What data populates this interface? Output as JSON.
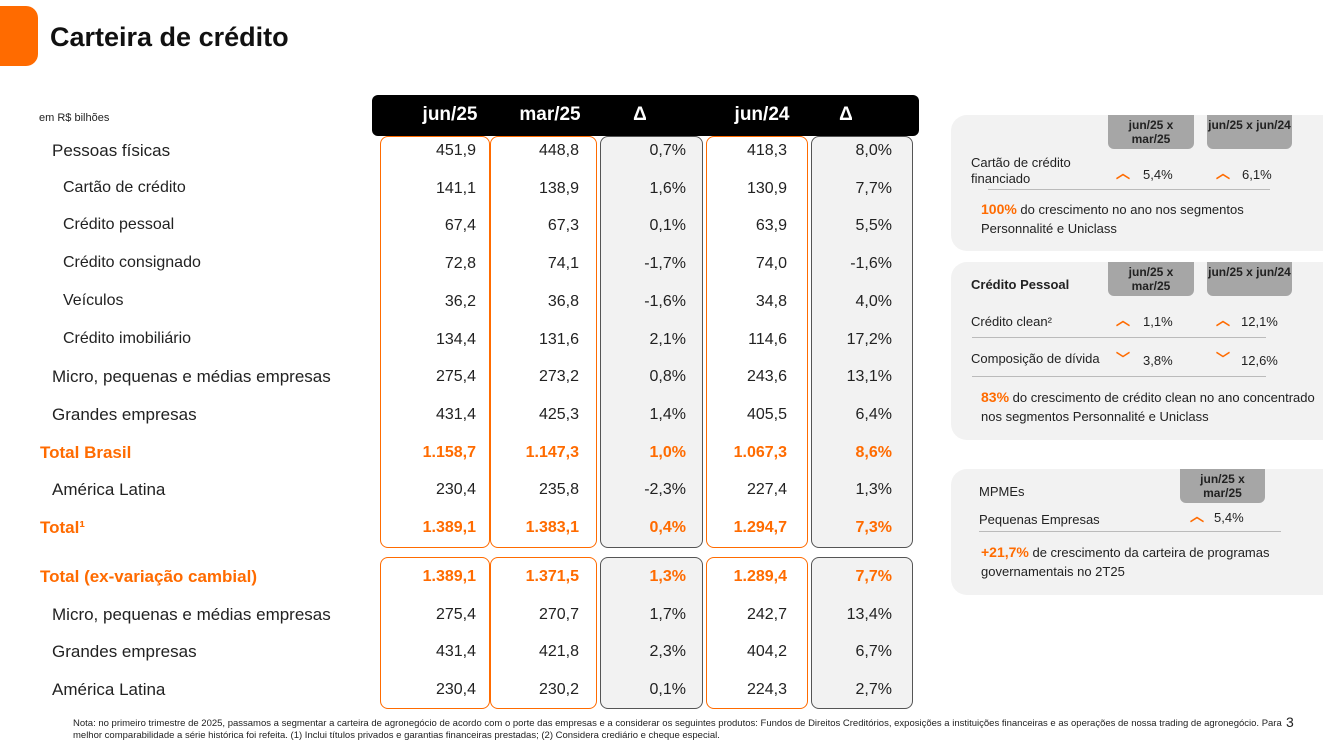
{
  "title": "Carteira de crédito",
  "unit": "em R$ bilhões",
  "columns": [
    "jun/25",
    "mar/25",
    "Δ",
    "jun/24",
    "Δ"
  ],
  "rows": [
    {
      "label": "Pessoas físicas",
      "values": [
        "451,9",
        "448,8",
        "0,7%",
        "418,3",
        "8,0%"
      ],
      "indent": 1,
      "style": "main"
    },
    {
      "label": "Cartão de crédito",
      "values": [
        "141,1",
        "138,9",
        "1,6%",
        "130,9",
        "7,7%"
      ],
      "indent": 2,
      "style": "sub"
    },
    {
      "label": "Crédito pessoal",
      "values": [
        "67,4",
        "67,3",
        "0,1%",
        "63,9",
        "5,5%"
      ],
      "indent": 2,
      "style": "sub"
    },
    {
      "label": "Crédito consignado",
      "values": [
        "72,8",
        "74,1",
        "-1,7%",
        "74,0",
        "-1,6%"
      ],
      "indent": 2,
      "style": "sub"
    },
    {
      "label": "Veículos",
      "values": [
        "36,2",
        "36,8",
        "-1,6%",
        "34,8",
        "4,0%"
      ],
      "indent": 2,
      "style": "sub"
    },
    {
      "label": "Crédito imobiliário",
      "values": [
        "134,4",
        "131,6",
        "2,1%",
        "114,6",
        "17,2%"
      ],
      "indent": 2,
      "style": "sub"
    },
    {
      "label": "Micro, pequenas e médias empresas",
      "values": [
        "275,4",
        "273,2",
        "0,8%",
        "243,6",
        "13,1%"
      ],
      "indent": 1,
      "style": "main"
    },
    {
      "label": "Grandes empresas",
      "values": [
        "431,4",
        "425,3",
        "1,4%",
        "405,5",
        "6,4%"
      ],
      "indent": 1,
      "style": "main"
    },
    {
      "label": "Total Brasil",
      "values": [
        "1.158,7",
        "1.147,3",
        "1,0%",
        "1.067,3",
        "8,6%"
      ],
      "indent": 0,
      "style": "total"
    },
    {
      "label": "América Latina",
      "values": [
        "230,4",
        "235,8",
        "-2,3%",
        "227,4",
        "1,3%"
      ],
      "indent": 1,
      "style": "main"
    },
    {
      "label": "Total¹",
      "values": [
        "1.389,1",
        "1.383,1",
        "0,4%",
        "1.294,7",
        "7,3%"
      ],
      "indent": 0,
      "style": "total"
    }
  ],
  "rows2": [
    {
      "label": "Total (ex-variação cambial)",
      "values": [
        "1.389,1",
        "1.371,5",
        "1,3%",
        "1.289,4",
        "7,7%"
      ],
      "indent": 0,
      "style": "total"
    },
    {
      "label": "Micro, pequenas e médias empresas",
      "values": [
        "275,4",
        "270,7",
        "1,7%",
        "242,7",
        "13,4%"
      ],
      "indent": 1,
      "style": "main"
    },
    {
      "label": "Grandes empresas",
      "values": [
        "431,4",
        "421,8",
        "2,3%",
        "404,2",
        "6,7%"
      ],
      "indent": 1,
      "style": "main"
    },
    {
      "label": "América Latina",
      "values": [
        "230,4",
        "230,2",
        "0,1%",
        "224,3",
        "2,7%"
      ],
      "indent": 1,
      "style": "main"
    }
  ],
  "panels": {
    "p1": {
      "pill1": "jun/25 x mar/25",
      "pill2": "jun/25 x jun/24",
      "row_label": "Cartão de crédito financiado",
      "v1": "5,4%",
      "v2": "6,1%",
      "highlight": "100%",
      "text": " do crescimento no ano nos segmentos Personnalité e Uniclass"
    },
    "p2": {
      "title": "Crédito Pessoal",
      "pill1": "jun/25 x mar/25",
      "pill2": "jun/25 x jun/24",
      "r1_label": "Crédito clean²",
      "r1_v1": "1,1%",
      "r1_v2": "12,1%",
      "r2_label": "Composição de dívida",
      "r2_v1": "3,8%",
      "r2_v2": "12,6%",
      "highlight": "83%",
      "text": " do crescimento de crédito clean no ano concentrado nos segmentos Personnalité e Uniclass"
    },
    "p3": {
      "title": "MPMEs",
      "pill1": "jun/25 x mar/25",
      "row_label": "Pequenas Empresas",
      "v1": "5,4%",
      "highlight": "+21,7%",
      "text": " de crescimento da carteira de programas governamentais no 2T25"
    }
  },
  "note": "Nota: no primeiro trimestre de 2025, passamos a segmentar a carteira de agronegócio de acordo com o porte das empresas e a considerar os seguintes produtos: Fundos de Direitos Creditórios, exposições a instituições financeiras e as operações de nossa trading de agronegócio. Para melhor comparabilidade a série histórica foi refeita. (1) Inclui títulos privados e garantias financeiras prestadas; (2) Considera crediário e cheque especial.",
  "page_number": "3",
  "colors": {
    "accent": "#ff6b00"
  }
}
